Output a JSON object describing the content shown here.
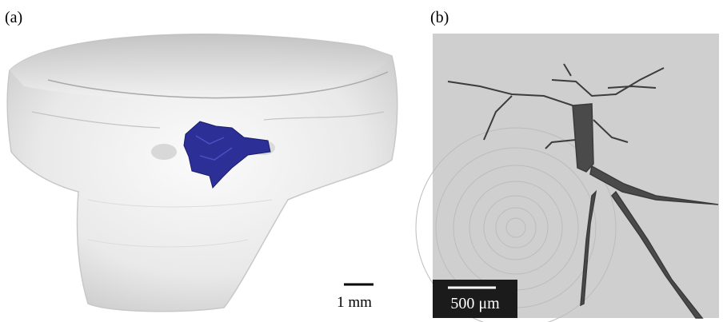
{
  "panels": [
    {
      "label": "(a)",
      "scale_bar": "1 mm"
    },
    {
      "label": "(b)",
      "scale_bar": "500 μm"
    }
  ]
}
